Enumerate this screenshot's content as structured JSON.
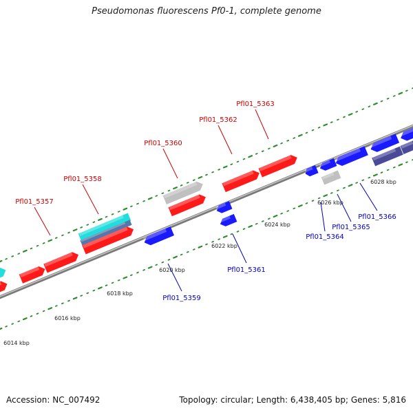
{
  "title": "Pseudomonas fluorescens Pf0-1, complete genome",
  "footer": {
    "accession": "Accession: NC_007492",
    "summary": "Topology: circular; Length: 6,438,405 bp; Genes: 5,816"
  },
  "colors": {
    "forward_gene": "#ff1a1a",
    "reverse_gene": "#1a1aff",
    "other_feature": "#c0c0c0",
    "cyan_feature": "#22dddd",
    "steel_feature": "#5577aa",
    "navy_feature": "#4a4a99",
    "backbone": "#888888",
    "tick": "#2e8b2e",
    "forward_label": "#cc0000",
    "reverse_label": "#0000bb"
  },
  "scale": {
    "ticks": [
      {
        "kbp": 6014,
        "label": "6014 kbp"
      },
      {
        "kbp": 6016,
        "label": "6016 kbp"
      },
      {
        "kbp": 6018,
        "label": "6018 kbp"
      },
      {
        "kbp": 6020,
        "label": "6020 kbp"
      },
      {
        "kbp": 6022,
        "label": "6022 kbp"
      },
      {
        "kbp": 6024,
        "label": "6024 kbp"
      },
      {
        "kbp": 6026,
        "label": "6026 kbp"
      },
      {
        "kbp": 6028,
        "label": "6028 kbp"
      }
    ]
  },
  "gene_labels": [
    {
      "text": "Pfl01_5357",
      "strand": "forward"
    },
    {
      "text": "Pfl01_5358",
      "strand": "forward"
    },
    {
      "text": "Pfl01_5359",
      "strand": "reverse"
    },
    {
      "text": "Pfl01_5360",
      "strand": "forward"
    },
    {
      "text": "Pfl01_5361",
      "strand": "reverse"
    },
    {
      "text": "Pfl01_5362",
      "strand": "forward"
    },
    {
      "text": "Pfl01_5363",
      "strand": "forward"
    },
    {
      "text": "Pfl01_5364",
      "strand": "reverse"
    },
    {
      "text": "Pfl01_5365",
      "strand": "reverse"
    },
    {
      "text": "Pfl01_5366",
      "strand": "reverse"
    }
  ]
}
